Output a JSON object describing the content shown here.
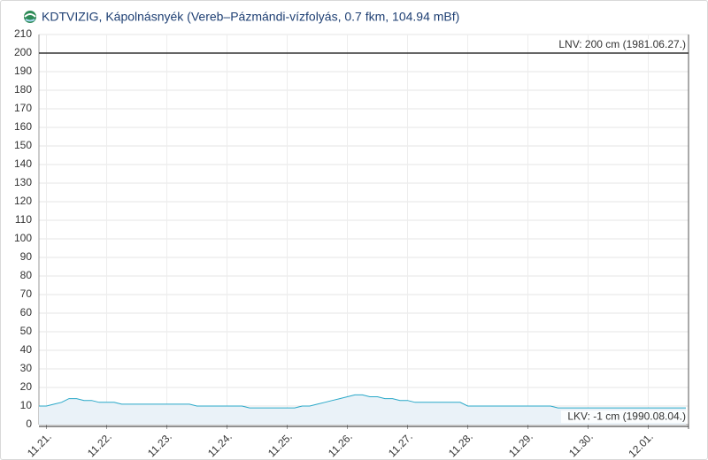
{
  "chart_data": {
    "type": "area",
    "title": "KDTVIZIG, Kápolnásnyék (Vereb–Pázmándi-vízfolyás, 0.7 fkm, 104.94 mBf)",
    "series": [
      {
        "color": "#29a8c8",
        "values": [
          10,
          10,
          11,
          12,
          14,
          14,
          13,
          13,
          12,
          12,
          12,
          11,
          11,
          11,
          11,
          11,
          11,
          11,
          11,
          11,
          11,
          10,
          10,
          10,
          10,
          10,
          10,
          10,
          9,
          9,
          9,
          9,
          9,
          9,
          9,
          10,
          10,
          11,
          12,
          13,
          14,
          15,
          16,
          16,
          15,
          15,
          14,
          14,
          13,
          13,
          12,
          12,
          12,
          12,
          12,
          12,
          12,
          10,
          10,
          10,
          10,
          10,
          10,
          10,
          10,
          10,
          10,
          10,
          10,
          9,
          9,
          9,
          9,
          9,
          9,
          9,
          9,
          9,
          9,
          9,
          9,
          9,
          9,
          9,
          9,
          9,
          9
        ]
      }
    ],
    "xlim": [
      0,
      86
    ],
    "xticks": [
      {
        "value": 1,
        "label": "11.21."
      },
      {
        "value": 9,
        "label": "11.22."
      },
      {
        "value": 17,
        "label": "11.23."
      },
      {
        "value": 25,
        "label": "11.24."
      },
      {
        "value": 33,
        "label": "11.25."
      },
      {
        "value": 41,
        "label": "11.26."
      },
      {
        "value": 49,
        "label": "11.27."
      },
      {
        "value": 57,
        "label": "11.28."
      },
      {
        "value": 65,
        "label": "11.29."
      },
      {
        "value": 73,
        "label": "11.30."
      },
      {
        "value": 81,
        "label": "12.01."
      }
    ],
    "ylim": [
      0,
      210
    ],
    "yticks": [
      0,
      10,
      20,
      30,
      40,
      50,
      60,
      70,
      80,
      90,
      100,
      110,
      120,
      130,
      140,
      150,
      160,
      170,
      180,
      190,
      200,
      210
    ],
    "grid": true,
    "reference_lines": [
      {
        "value": 200,
        "label": "LNV: 200 cm (1981.06.27.)"
      },
      {
        "value": -1,
        "label": "LKV: -1 cm (1990.08.04.)"
      }
    ]
  }
}
